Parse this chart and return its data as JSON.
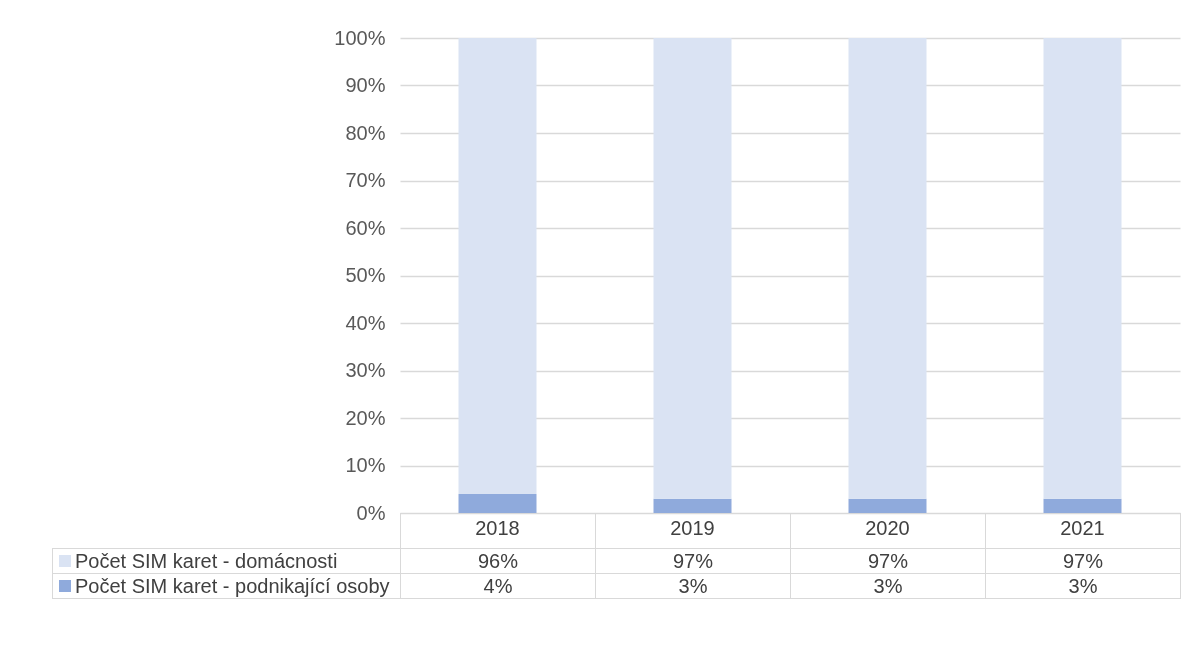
{
  "chart_data": {
    "type": "bar",
    "stacked": true,
    "categories": [
      "2018",
      "2019",
      "2020",
      "2021"
    ],
    "series": [
      {
        "name": "Počet SIM karet - podnikající osoby",
        "color": "#8faadc",
        "values": [
          4,
          3,
          3,
          3
        ],
        "value_labels": [
          "4%",
          "3%",
          "3%",
          "3%"
        ]
      },
      {
        "name": "Počet SIM karet - domácnosti",
        "color": "#dae3f3",
        "values": [
          96,
          97,
          97,
          97
        ],
        "value_labels": [
          "96%",
          "97%",
          "97%",
          "97%"
        ]
      }
    ],
    "ylim": [
      0,
      100
    ],
    "yticks": [
      {
        "value": 0,
        "label": "0%"
      },
      {
        "value": 10,
        "label": "10%"
      },
      {
        "value": 20,
        "label": "20%"
      },
      {
        "value": 30,
        "label": "30%"
      },
      {
        "value": 40,
        "label": "40%"
      },
      {
        "value": 50,
        "label": "50%"
      },
      {
        "value": 60,
        "label": "60%"
      },
      {
        "value": 70,
        "label": "70%"
      },
      {
        "value": 80,
        "label": "80%"
      },
      {
        "value": 90,
        "label": "90%"
      },
      {
        "value": 100,
        "label": "100%"
      }
    ],
    "grid": "y",
    "legend": "bottom"
  }
}
